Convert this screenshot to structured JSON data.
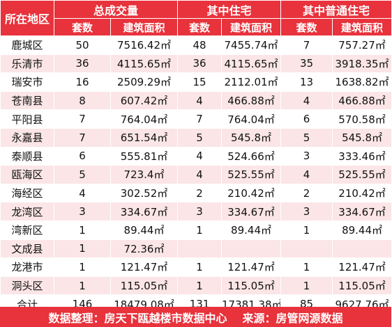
{
  "header": {
    "region_label": "所在地区",
    "groups": [
      "总成交量",
      "其中住宅",
      "其中普通住宅"
    ],
    "sub": [
      "套数",
      "建筑面积",
      "套数",
      "建筑面积",
      "套数",
      "建筑面积"
    ]
  },
  "rows": [
    {
      "region": "鹿城区",
      "total_units": "50",
      "total_area": "7516.42㎡",
      "res_units": "48",
      "res_area": "7455.74㎡",
      "ord_units": "7",
      "ord_area": "757.27㎡"
    },
    {
      "region": "乐清市",
      "total_units": "36",
      "total_area": "4115.65㎡",
      "res_units": "36",
      "res_area": "4115.65㎡",
      "ord_units": "35",
      "ord_area": "3918.35㎡"
    },
    {
      "region": "瑞安市",
      "total_units": "16",
      "total_area": "2509.29㎡",
      "res_units": "15",
      "res_area": "2112.01㎡",
      "ord_units": "13",
      "ord_area": "1638.82㎡"
    },
    {
      "region": "苍南县",
      "total_units": "8",
      "total_area": "607.42㎡",
      "res_units": "4",
      "res_area": "466.88㎡",
      "ord_units": "4",
      "ord_area": "466.88㎡"
    },
    {
      "region": "平阳县",
      "total_units": "7",
      "total_area": "764.04㎡",
      "res_units": "7",
      "res_area": "764.04㎡",
      "ord_units": "6",
      "ord_area": "570.58㎡"
    },
    {
      "region": "永嘉县",
      "total_units": "7",
      "total_area": "651.54㎡",
      "res_units": "5",
      "res_area": "545.8㎡",
      "ord_units": "5",
      "ord_area": "545.8㎡"
    },
    {
      "region": "泰顺县",
      "total_units": "6",
      "total_area": "555.81㎡",
      "res_units": "4",
      "res_area": "524.66㎡",
      "ord_units": "3",
      "ord_area": "333.46㎡"
    },
    {
      "region": "瓯海区",
      "total_units": "5",
      "total_area": "723.4㎡",
      "res_units": "4",
      "res_area": "525.55㎡",
      "ord_units": "4",
      "ord_area": "525.55㎡"
    },
    {
      "region": "海经区",
      "total_units": "4",
      "total_area": "302.52㎡",
      "res_units": "2",
      "res_area": "210.42㎡",
      "ord_units": "2",
      "ord_area": "210.42㎡"
    },
    {
      "region": "龙湾区",
      "total_units": "3",
      "total_area": "334.67㎡",
      "res_units": "3",
      "res_area": "334.67㎡",
      "ord_units": "3",
      "ord_area": "334.67㎡"
    },
    {
      "region": "湾新区",
      "total_units": "1",
      "total_area": "89.44㎡",
      "res_units": "1",
      "res_area": "89.44㎡",
      "ord_units": "1",
      "ord_area": "89.44㎡"
    },
    {
      "region": "文成县",
      "total_units": "1",
      "total_area": "72.36㎡",
      "res_units": "",
      "res_area": "",
      "ord_units": "",
      "ord_area": ""
    },
    {
      "region": "龙港市",
      "total_units": "1",
      "total_area": "121.47㎡",
      "res_units": "1",
      "res_area": "121.47㎡",
      "ord_units": "1",
      "ord_area": "121.47㎡"
    },
    {
      "region": "洞头区",
      "total_units": "1",
      "total_area": "115.05㎡",
      "res_units": "1",
      "res_area": "115.05㎡",
      "ord_units": "1",
      "ord_area": "115.05㎡"
    }
  ],
  "total": {
    "region": "合计",
    "total_units": "146",
    "total_area": "18479.08㎡",
    "res_units": "131",
    "res_area": "17381.38㎡",
    "ord_units": "85",
    "ord_area": "9627.76㎡"
  },
  "footer": {
    "compiler": "数据整理：房天下瓯越楼市数据中心",
    "source": "来源：房管网源数据"
  },
  "colors": {
    "header_red": "#e8323c",
    "stripe_pink": "#fbe5e6"
  }
}
